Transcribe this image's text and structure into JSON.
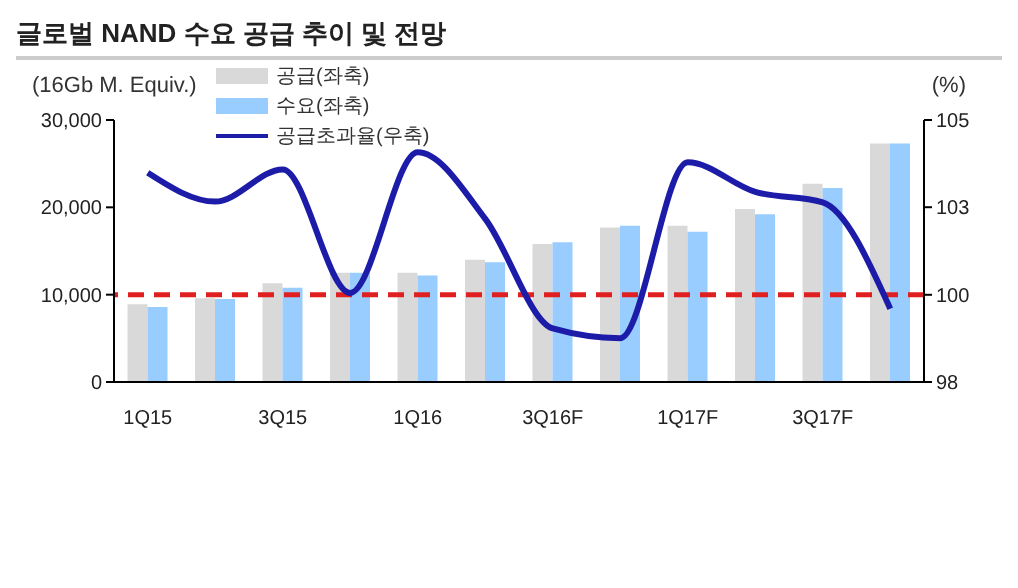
{
  "chart_data": {
    "type": "bar",
    "title": "글로벌 NAND 수요 공급 추이 및 전망",
    "ylabel": "(16Gb M. Equiv.)",
    "y2label": "(%)",
    "categories": [
      "1Q15",
      null,
      "3Q15",
      null,
      "1Q16",
      null,
      "3Q16F",
      null,
      "1Q17F",
      null,
      "3Q17F",
      null
    ],
    "series": [
      {
        "name": "공급(좌축)",
        "color": "#d9d9d9",
        "values": [
          8900,
          9600,
          11300,
          12500,
          12500,
          14000,
          15800,
          17700,
          17900,
          19800,
          22700,
          27300
        ]
      },
      {
        "name": "수요(좌축)",
        "color": "#99ccff",
        "values": [
          8600,
          9500,
          10800,
          12500,
          12200,
          13700,
          16000,
          17900,
          17200,
          19200,
          22200,
          27300
        ]
      },
      {
        "name": "공급초과율(우축)",
        "type": "line",
        "axis": "y2",
        "color": "#1c1ca8",
        "values": [
          103.59,
          102.82,
          103.68,
          100.38,
          104.14,
          102.36,
          99.43,
          99.17,
          103.87,
          103.08,
          102.8,
          99.96
        ]
      }
    ],
    "ylim": [
      0,
      30000
    ],
    "yticks": [
      0,
      {
        "value": 10000,
        "label": "10,000"
      },
      {
        "value": 20000,
        "label": "20,000"
      },
      {
        "value": 30000,
        "label": "30,000"
      }
    ],
    "y2lim": [
      98,
      105
    ],
    "y2ticks": [
      98,
      {
        "value": 100.33,
        "label": "100"
      },
      {
        "value": 102.67,
        "label": "103"
      },
      105
    ],
    "ref_lines": [
      {
        "axis": "y2",
        "value": 100.33,
        "color": "#e02020",
        "line_style": "dashed"
      }
    ],
    "legend": "top left",
    "grid": false,
    "marker": "none"
  }
}
